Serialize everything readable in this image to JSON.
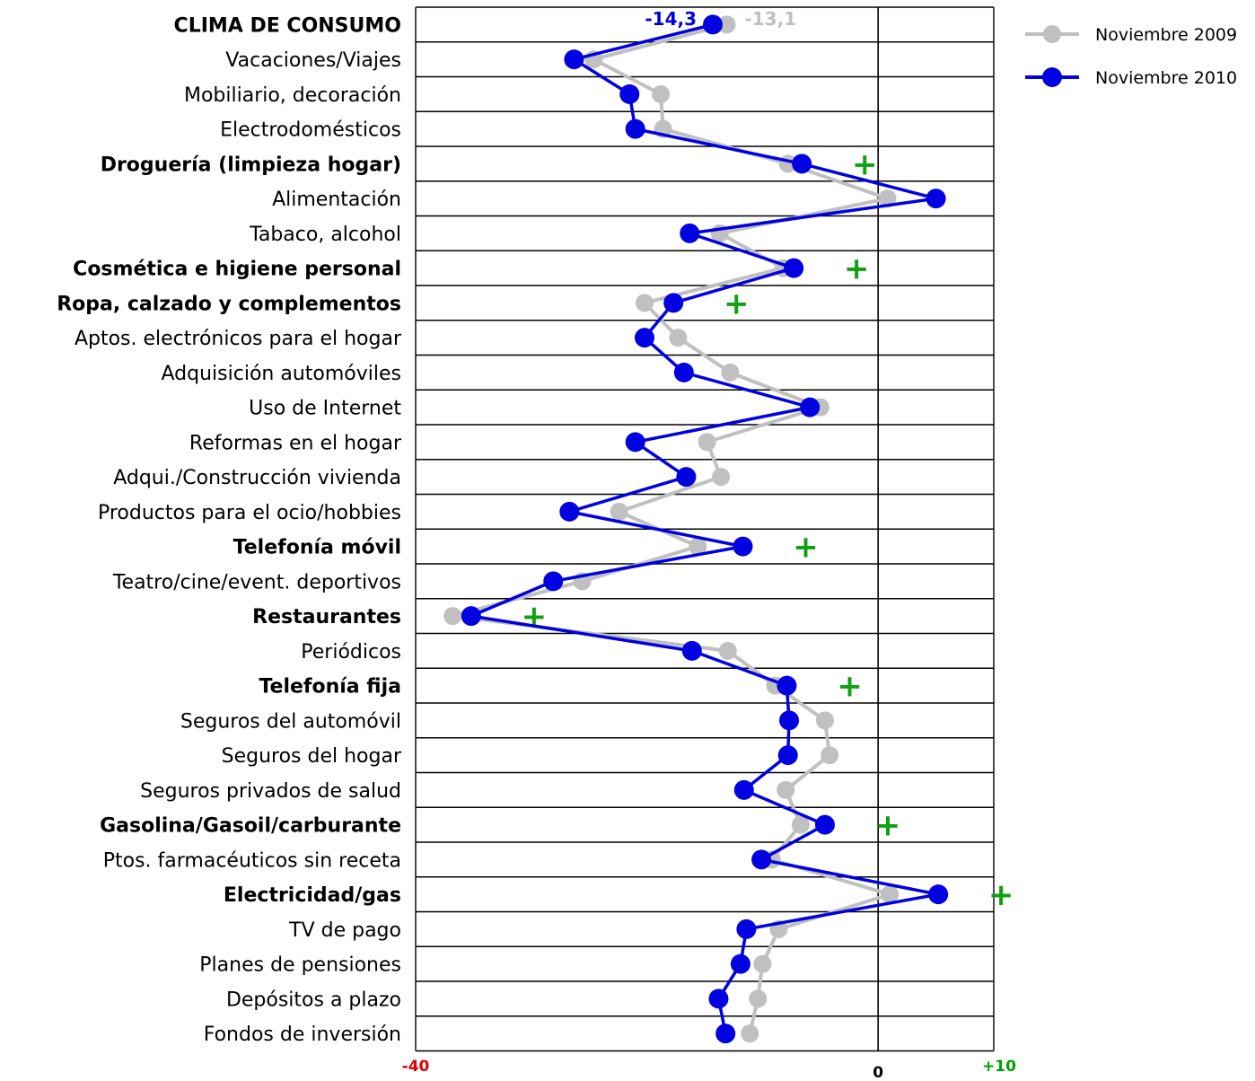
{
  "chart_data": {
    "type": "line",
    "orientation": "horizontal",
    "categories": [
      "CLIMA DE CONSUMO",
      "Vacaciones/Viajes",
      "Mobiliario, decoración",
      "Electrodomésticos",
      "Droguería (limpieza hogar)",
      "Alimentación",
      "Tabaco, alcohol",
      "Cosmética e higiene personal",
      "Ropa, calzado y complementos",
      "Aptos. electrónicos para el hogar",
      "Adquisición automóviles",
      "Uso de Internet",
      "Reformas en el hogar",
      "Adqui./Construcción vivienda",
      "Productos para el ocio/hobbies",
      "Telefonía móvil",
      "Teatro/cine/event. deportivos",
      "Restaurantes",
      "Periódicos",
      "Telefonía fija",
      "Seguros del automóvil",
      "Seguros del hogar",
      "Seguros privados de salud",
      "Gasolina/Gasoil/carburante",
      "Ptos. farmacéuticos sin receta",
      "Electricidad/gas",
      "TV de pago",
      "Planes de pensiones",
      "Depósitos a plazo",
      "Fondos de inversión"
    ],
    "highlighted_categories": [
      "Droguería (limpieza hogar)",
      "Cosmética e higiene personal",
      "Ropa, calzado y complementos",
      "Telefonía móvil",
      "Restaurantes",
      "Telefonía fija",
      "Gasolina/Gasoil/carburante",
      "Electricidad/gas"
    ],
    "series": [
      {
        "name": "Noviembre 2009",
        "color": "#c0c0c0",
        "values": [
          -13.1,
          -24.6,
          -18.8,
          -18.6,
          -7.8,
          0.8,
          -13.7,
          -8.2,
          -20.2,
          -17.3,
          -12.8,
          -5.0,
          -14.8,
          -13.6,
          -22.4,
          -15.6,
          -25.6,
          -36.8,
          -13.0,
          -8.9,
          -4.6,
          -4.2,
          -8.0,
          -6.7,
          -9.2,
          1.0,
          -8.6,
          -10.0,
          -10.4,
          -11.1
        ]
      },
      {
        "name": "Noviembre 2010",
        "color": "#0000e0",
        "values": [
          -14.3,
          -26.3,
          -21.5,
          -21.0,
          -6.6,
          5.0,
          -16.3,
          -7.3,
          -17.7,
          -20.2,
          -16.8,
          -5.9,
          -21.0,
          -16.6,
          -26.7,
          -11.7,
          -28.1,
          -35.2,
          -16.1,
          -7.9,
          -7.7,
          -7.8,
          -11.6,
          -4.6,
          -10.1,
          5.2,
          -11.4,
          -11.9,
          -13.8,
          -13.2
        ]
      }
    ],
    "improved_marker": "+",
    "annotations": {
      "clima_2010": "-14,3",
      "clima_2009": "-13,1"
    },
    "xlim": [
      -40,
      10
    ],
    "x_ticks": [
      {
        "value": -40,
        "label": "-40",
        "color": "#e00000"
      },
      {
        "value": 0,
        "label": "0",
        "color": "#000000"
      },
      {
        "value": 10,
        "label": "+10",
        "color": "#00a000"
      }
    ],
    "highlight_color": "#10a010",
    "title": "",
    "xlabel": "",
    "ylabel": "",
    "legend_position": "top-right",
    "grid": "horizontal"
  }
}
